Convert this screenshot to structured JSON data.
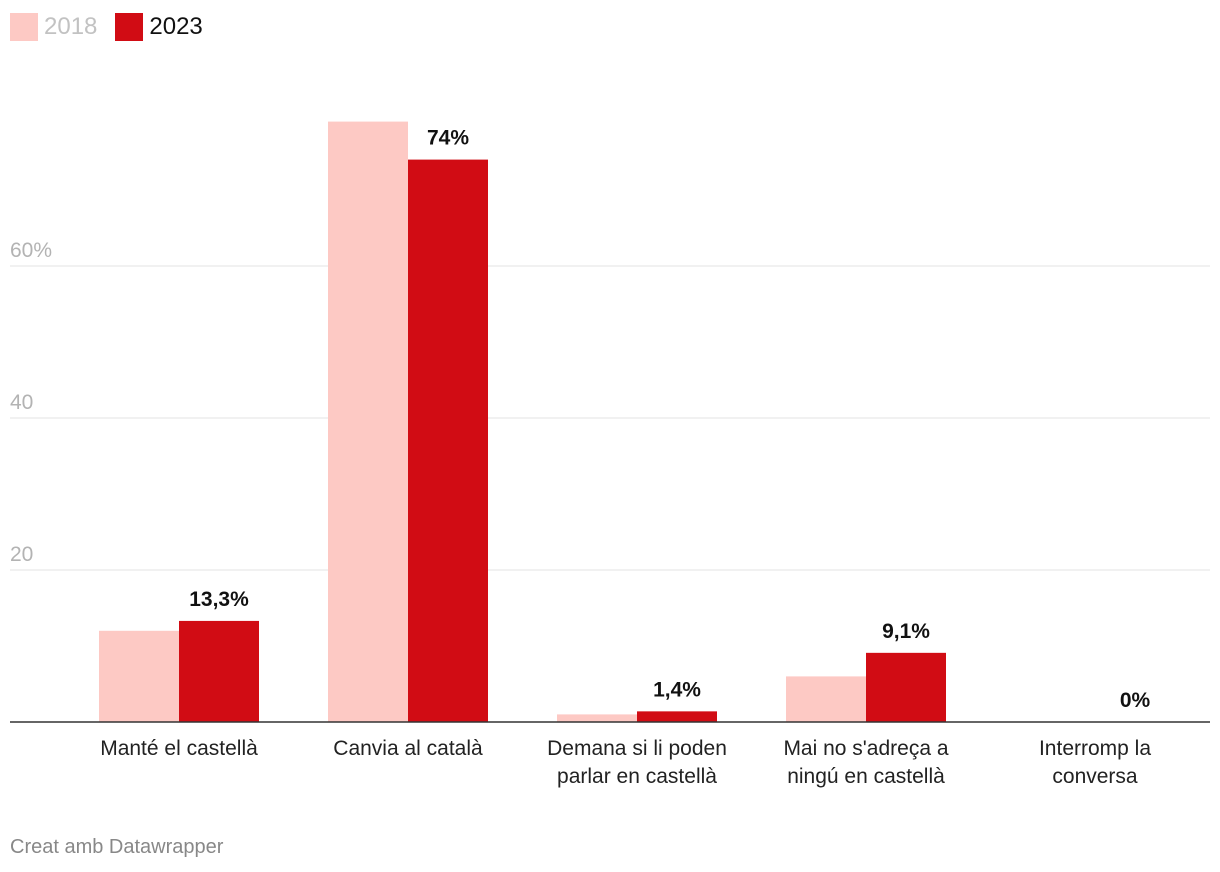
{
  "chart_data": {
    "type": "bar",
    "title": "",
    "xlabel": "",
    "ylabel": "",
    "ylim": [
      0,
      80
    ],
    "yticks": [
      {
        "value": 20,
        "label": "20"
      },
      {
        "value": 40,
        "label": "40"
      },
      {
        "value": 60,
        "label": "60%"
      }
    ],
    "grid": true,
    "legend_position": "top-left",
    "categories": [
      [
        "Manté el castellà"
      ],
      [
        "Canvia al català"
      ],
      [
        "Demana si li poden",
        "parlar en castellà"
      ],
      [
        "Mai no s'adreça a",
        "ningú en castellà"
      ],
      [
        "Interromp la",
        "conversa"
      ]
    ],
    "series": [
      {
        "name": "2018",
        "color": "#fdc9c4",
        "values": [
          12,
          79,
          1,
          6,
          0
        ],
        "labels": [
          "",
          "",
          "",
          "",
          ""
        ]
      },
      {
        "name": "2023",
        "color": "#d10c14",
        "values": [
          13.3,
          74,
          1.4,
          9.1,
          0
        ],
        "labels": [
          "13,3%",
          "74%",
          "1,4%",
          "9,1%",
          "0%"
        ]
      }
    ]
  },
  "legend": {
    "items": [
      {
        "label": "2018",
        "color": "#fdc9c4",
        "text_color": "#c2c2c2"
      },
      {
        "label": "2023",
        "color": "#d10c14",
        "text_color": "#111111"
      }
    ]
  },
  "footer": {
    "credit": "Creat amb Datawrapper"
  }
}
